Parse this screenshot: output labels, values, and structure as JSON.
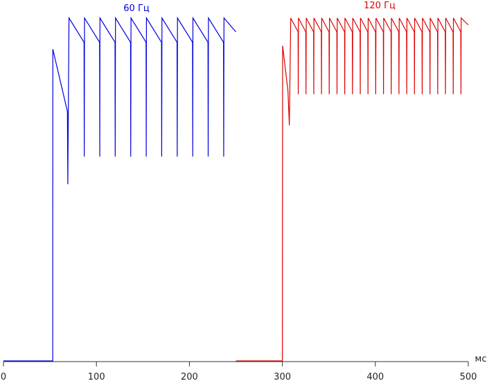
{
  "chart_data": {
    "type": "line",
    "x_label": "мс",
    "xlim": [
      0,
      500
    ],
    "xticks": [
      0,
      100,
      200,
      300,
      400,
      500
    ],
    "ylim": [
      0,
      100
    ],
    "series": [
      {
        "name": "60 Гц",
        "color": "#0000dd",
        "x": [
          0,
          53,
          53.1,
          68.8,
          69.2,
          70.5,
          86.7,
          86.9,
          87.2,
          103.4,
          103.6,
          103.8,
          120.0,
          120.2,
          120.5,
          136.7,
          136.9,
          137.2,
          153.4,
          153.6,
          153.8,
          170.0,
          170.2,
          170.5,
          186.7,
          186.9,
          187.2,
          203.4,
          203.6,
          203.8,
          220.0,
          220.2,
          220.5,
          236.7,
          236.9,
          237.2,
          250
        ],
        "values": [
          0,
          0,
          90,
          72,
          51,
          99,
          92,
          59,
          99,
          92,
          59,
          99,
          92,
          59,
          99,
          92,
          59,
          99,
          92,
          59,
          99,
          92,
          59,
          99,
          92,
          59,
          99,
          92,
          59,
          99,
          92,
          59,
          99,
          92,
          59,
          99,
          95
        ]
      },
      {
        "name": "120 Гц",
        "color": "#dd0000",
        "x": [
          250,
          300,
          300.3,
          306,
          307.5,
          309.0,
          316.9,
          317.1,
          317.3,
          325.2,
          325.4,
          325.7,
          333.6,
          333.8,
          334.0,
          341.9,
          342.1,
          342.3,
          350.2,
          350.4,
          350.7,
          358.6,
          358.8,
          359.0,
          366.9,
          367.1,
          367.3,
          375.2,
          375.4,
          375.7,
          383.6,
          383.8,
          384.0,
          391.9,
          392.1,
          392.3,
          400.2,
          400.4,
          400.7,
          408.6,
          408.8,
          409.0,
          416.9,
          417.1,
          417.3,
          425.2,
          425.4,
          425.7,
          433.6,
          433.8,
          434.0,
          441.9,
          442.1,
          442.3,
          450.2,
          450.4,
          450.7,
          458.6,
          458.8,
          459.0,
          466.9,
          467.1,
          467.3,
          475.2,
          475.4,
          475.7,
          483.6,
          483.8,
          484.0,
          491.9,
          492.1,
          492.3,
          500
        ],
        "values": [
          0,
          0,
          91,
          78,
          68,
          99,
          95,
          77,
          99,
          95,
          77,
          99,
          95,
          77,
          99,
          95,
          77,
          99,
          95,
          77,
          99,
          95,
          77,
          99,
          95,
          77,
          99,
          95,
          77,
          99,
          95,
          77,
          99,
          95,
          77,
          99,
          95,
          77,
          99,
          95,
          77,
          99,
          95,
          77,
          99,
          95,
          77,
          99,
          95,
          77,
          99,
          95,
          77,
          99,
          95,
          77,
          99,
          95,
          77,
          99,
          95,
          77,
          99,
          95,
          77,
          99,
          95,
          77,
          99,
          95,
          77,
          99,
          97
        ]
      }
    ]
  }
}
